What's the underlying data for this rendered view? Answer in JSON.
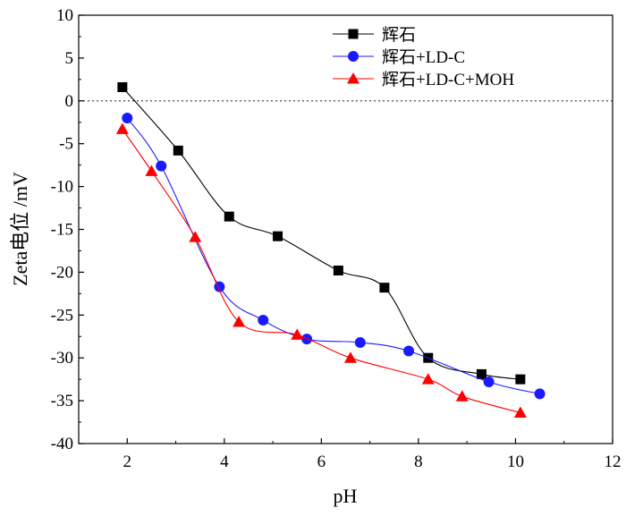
{
  "chart_data": {
    "type": "line",
    "title": "",
    "xlabel": "pH",
    "ylabel": "Zeta电位 /mV",
    "xlim": [
      1,
      12
    ],
    "ylim": [
      -40,
      10
    ],
    "xticks": [
      2,
      4,
      6,
      8,
      10,
      12
    ],
    "yticks": [
      10,
      5,
      0,
      -5,
      -10,
      -15,
      -20,
      -25,
      -30,
      -35,
      -40
    ],
    "reference_line": {
      "y": 0,
      "style": "dotted"
    },
    "legend_position": "top-right",
    "series": [
      {
        "name": "辉石",
        "color": "#000000",
        "marker": "square",
        "x": [
          1.9,
          3.05,
          4.1,
          5.1,
          6.35,
          7.3,
          8.2,
          9.3,
          10.1
        ],
        "y": [
          1.6,
          -5.8,
          -13.5,
          -15.8,
          -19.8,
          -21.8,
          -30.0,
          -31.9,
          -32.5
        ]
      },
      {
        "name": "辉石+LD-C",
        "color": "#1a1aff",
        "marker": "circle",
        "x": [
          2.0,
          2.7,
          3.9,
          4.8,
          5.7,
          6.8,
          7.8,
          9.45,
          10.5
        ],
        "y": [
          -2.0,
          -7.6,
          -21.7,
          -25.6,
          -27.8,
          -28.2,
          -29.2,
          -32.8,
          -34.2
        ]
      },
      {
        "name": "辉石+LD-C+MOH",
        "color": "#ff0000",
        "marker": "triangle",
        "x": [
          1.9,
          2.5,
          3.4,
          4.3,
          5.5,
          6.6,
          8.2,
          8.9,
          10.1
        ],
        "y": [
          -3.3,
          -8.2,
          -15.9,
          -25.8,
          -27.3,
          -30.0,
          -32.5,
          -34.5,
          -36.4
        ]
      }
    ]
  }
}
